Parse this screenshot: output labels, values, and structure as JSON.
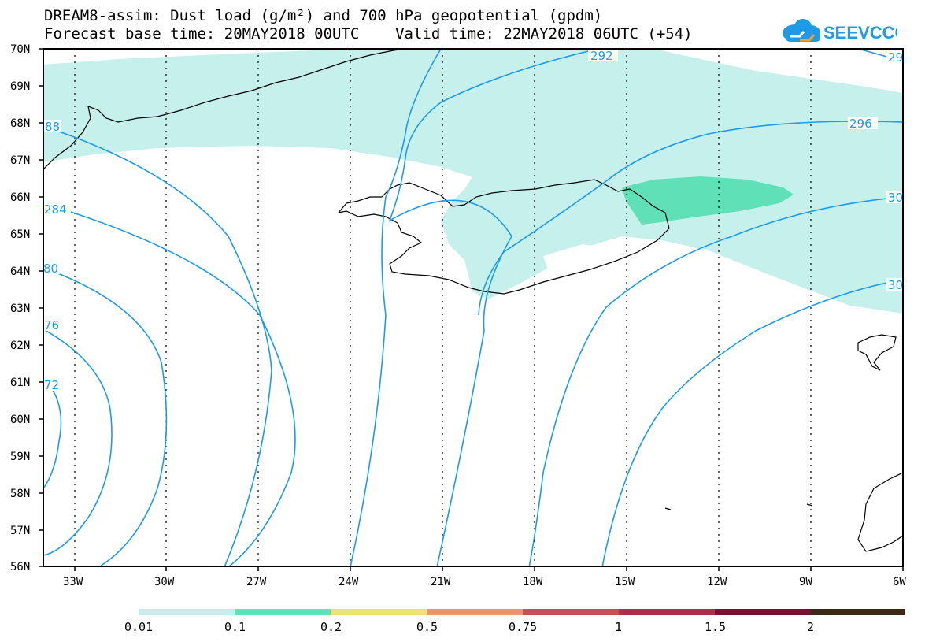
{
  "header": {
    "line1": "DREAM8-assim: Dust load (g/m²) and 700 hPa geopotential (gpdm)",
    "line2": "Forecast base time: 20MAY2018 00UTC    Valid time: 22MAY2018 06UTC (+54)"
  },
  "logo": {
    "text": "SEEVCCC",
    "color": "#1e9be6"
  },
  "axes": {
    "lat_labels": [
      "70N",
      "69N",
      "68N",
      "67N",
      "66N",
      "65N",
      "64N",
      "63N",
      "62N",
      "61N",
      "60N",
      "59N",
      "58N",
      "57N",
      "56N"
    ],
    "lon_labels": [
      "33W",
      "30W",
      "27W",
      "24W",
      "21W",
      "18W",
      "15W",
      "12W",
      "9W",
      "6W"
    ]
  },
  "contours": {
    "color": "#1e9be6",
    "labels": [
      "292",
      "29",
      "88",
      "296",
      "284",
      "30",
      "80",
      "30",
      "76",
      "72"
    ]
  },
  "dust_colors": {
    "low": "#c6f0ec",
    "mid": "#5fe0b6"
  },
  "colorbar": {
    "colors": [
      "#c6f0ec",
      "#5fe0b6",
      "#f4e07a",
      "#e8956a",
      "#c0574f",
      "#a3324a",
      "#7a1032",
      "#3a2a16",
      "#9b73a6"
    ],
    "tick_labels": [
      "0.01",
      "0.1",
      "0.2",
      "0.5",
      "0.75",
      "1",
      "1.5",
      "2"
    ]
  }
}
